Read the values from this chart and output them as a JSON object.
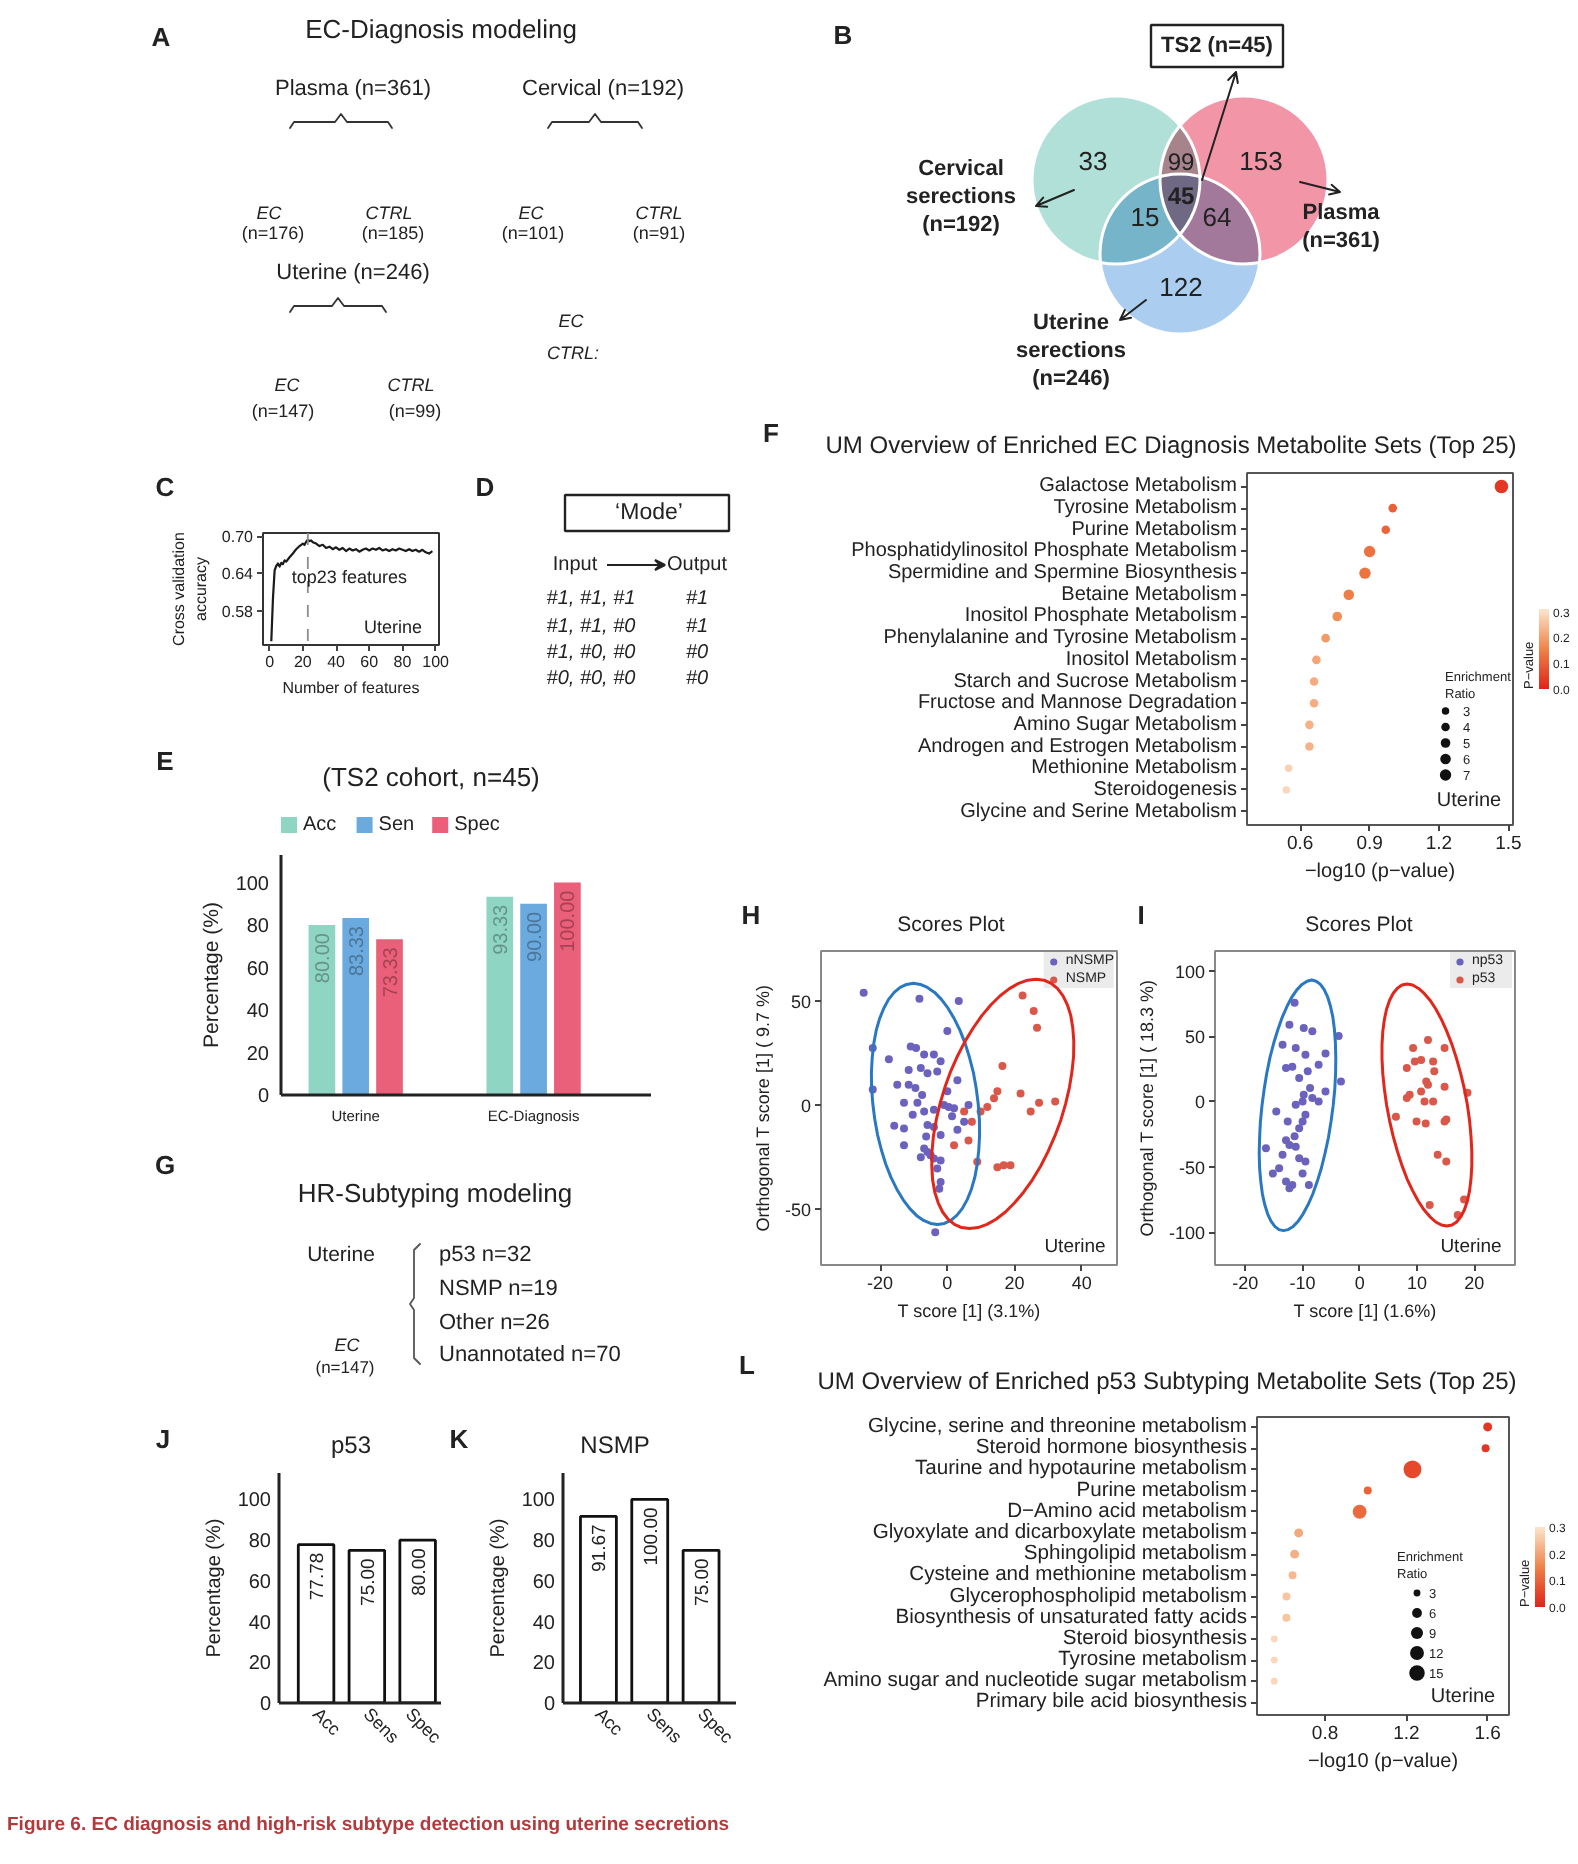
{
  "chart_data": [
    {
      "type": "other",
      "title": "EC-Diagnosis modeling",
      "annotations": [
        "A",
        "Plasma (n=361)",
        "Cervical (n=192)",
        "Uterine (n=246)",
        "EC",
        "(n=176)",
        "CTRL",
        "(n=185)",
        "EC",
        "(n=101)",
        "CTRL",
        "(n=91)",
        "EC",
        "(n=147)",
        "CTRL",
        "(n=99)",
        "EC",
        "CTRL:"
      ]
    },
    {
      "type": "other",
      "annotations": [
        "B",
        "TS2 (n=45)",
        "33",
        "99",
        "153",
        "15",
        "45",
        "64",
        "122",
        "Cervical serections (n=192)",
        "Plasma (n=361)",
        "Uterine serections (n=246)"
      ]
    },
    {
      "type": "line",
      "annotations": [
        "C",
        "Uterine"
      ],
      "xlabel": "Number of features",
      "ylabel": "Cross validation\naccuracy",
      "xlim": [
        -4,
        102
      ],
      "xticks": [
        0,
        20,
        40,
        60,
        80,
        100
      ],
      "ylim": [
        0.525,
        0.705
      ],
      "yticks": [
        0.58,
        0.64,
        {
          "value": 0.7,
          "label": "0.70"
        }
      ],
      "ref_lines": [
        {
          "axis": "x",
          "value": 23,
          "label": "top23 features",
          "line_style": "dashed",
          "color": "#8c8c8c"
        }
      ],
      "series": [
        {
          "color": "#1a1a1a",
          "x": [
            1,
            2,
            3,
            4,
            5,
            6,
            7,
            8,
            9,
            10,
            12,
            14,
            16,
            18,
            20,
            21,
            22,
            23,
            24,
            25,
            26,
            28,
            30,
            32,
            34,
            36,
            38,
            40,
            42,
            44,
            46,
            48,
            50,
            52,
            54,
            56,
            58,
            60,
            62,
            64,
            66,
            68,
            70,
            72,
            74,
            76,
            78,
            80,
            82,
            84,
            86,
            88,
            90,
            92,
            94,
            96,
            98
          ],
          "values": [
            0.531,
            0.6,
            0.645,
            0.652,
            0.656,
            0.651,
            0.657,
            0.655,
            0.661,
            0.659,
            0.666,
            0.672,
            0.679,
            0.684,
            0.688,
            0.686,
            0.691,
            0.694,
            0.692,
            0.693,
            0.69,
            0.688,
            0.684,
            0.686,
            0.681,
            0.683,
            0.679,
            0.682,
            0.678,
            0.681,
            0.676,
            0.68,
            0.677,
            0.679,
            0.675,
            0.678,
            0.68,
            0.677,
            0.68,
            0.678,
            0.681,
            0.677,
            0.679,
            0.676,
            0.679,
            0.677,
            0.68,
            0.678,
            0.676,
            0.679,
            0.676,
            0.678,
            0.675,
            0.678,
            0.674,
            0.672,
            0.676
          ]
        }
      ]
    },
    {
      "type": "other",
      "annotations": [
        "D",
        "‘Mode’",
        "Input",
        "Output",
        "#1, #1, #1",
        "#1",
        "#1, #1, #0",
        "#1",
        "#1, #0, #0",
        "#0",
        "#0, #0, #0",
        "#0"
      ]
    },
    {
      "type": "bar",
      "title": "(TS2 cohort, n=45)",
      "annotations": [
        "E"
      ],
      "categories": [
        "Uterine",
        "EC-Diagnosis"
      ],
      "ylabel": "Percentage (%)",
      "ylim": [
        0,
        113
      ],
      "yticks": [
        0,
        20,
        40,
        60,
        80,
        100
      ],
      "legend": "top",
      "series": [
        {
          "name": "Acc",
          "color": "#8fd5c3",
          "values": [
            80.0,
            93.33
          ],
          "value_labels": [
            "80.00",
            "93.33"
          ]
        },
        {
          "name": "Sen",
          "color": "#6aaade",
          "values": [
            83.33,
            90.0
          ],
          "value_labels": [
            "83.33",
            "90.00"
          ]
        },
        {
          "name": "Spec",
          "color": "#ea5f79",
          "values": [
            73.33,
            100.0
          ],
          "value_labels": [
            "73.33",
            "100.00"
          ]
        }
      ]
    },
    {
      "type": "bubble",
      "title": "UM Overview of Enriched EC Diagnosis Metabolite Sets (Top 25)",
      "annotations": [
        "F",
        "Uterine"
      ],
      "orientation": "horizontal",
      "categories": [
        "Galactose Metabolism",
        "Tyrosine Metabolism",
        "Purine Metabolism",
        "Phosphatidylinositol Phosphate Metabolism",
        "Spermidine and Spermine Biosynthesis",
        "Betaine Metabolism",
        "Inositol Phosphate Metabolism",
        "Phenylalanine and Tyrosine Metabolism",
        "Inositol Metabolism",
        "Starch and Sucrose Metabolism",
        "Fructose and Mannose Degradation",
        "Amino Sugar Metabolism",
        "Androgen and Estrogen Metabolism",
        "Methionine Metabolism",
        "Steroidogenesis",
        "Glycine and Serine Metabolism"
      ],
      "values": [
        1.47,
        1.0,
        0.97,
        0.9,
        0.88,
        0.81,
        0.76,
        0.71,
        0.67,
        0.66,
        0.66,
        0.64,
        0.64,
        0.55,
        0.54,
        null
      ],
      "sizes": [
        10,
        4,
        4,
        7,
        7,
        6,
        5,
        4,
        4,
        4,
        4,
        4,
        4,
        3,
        3,
        null
      ],
      "cvalues": [
        0.03,
        0.1,
        0.11,
        0.13,
        0.13,
        0.15,
        0.17,
        0.19,
        0.21,
        0.22,
        0.22,
        0.23,
        0.23,
        0.28,
        0.29,
        null
      ],
      "xlim": [
        0.37,
        1.52
      ],
      "xticks": [
        0.6,
        0.9,
        1.2,
        1.5
      ],
      "xlabel": "−log10 (p−value)",
      "clabel": "P−value",
      "clim": [
        0,
        0.31
      ],
      "cticks": [
        {
          "value": 0,
          "label": "0.0"
        },
        0.1,
        0.2,
        0.3
      ],
      "size_legend": [
        3,
        4,
        5,
        6,
        7
      ],
      "legend_title": "Enrichment\nRatio"
    },
    {
      "type": "other",
      "title": "HR-Subtyping modeling",
      "annotations": [
        "G",
        "Uterine",
        "EC",
        "(n=147)",
        "p53 n=32",
        "NSMP n=19",
        "Other n=26",
        "Unannotated n=70"
      ]
    },
    {
      "type": "scatter",
      "title": "Scores Plot",
      "annotations": [
        "H",
        "Uterine"
      ],
      "xlabel": "T score [1] (3.1%)",
      "ylabel": "Orthogonal T score [1] ( 9.7 %)",
      "xlim": [
        -37.6,
        50.5
      ],
      "xticks": [
        -20,
        0,
        20,
        40
      ],
      "ylim": [
        -77,
        74
      ],
      "yticks": [
        -50,
        0,
        50
      ],
      "legend": "top right",
      "marker": "circle",
      "series": [
        {
          "name": "nNSMP",
          "color": "#6b62bd",
          "x": [
            -24.9,
            -8.3,
            3.4,
            0.0,
            -22.2,
            -10.9,
            -9.3,
            -17.4,
            -6.9,
            -4.0,
            -2.0,
            -11.5,
            -7.9,
            -5.9,
            -3.0,
            3.0,
            -14.9,
            -11.5,
            -9.5,
            -7.5,
            -22.2,
            -12.9,
            -8.9,
            -1.0,
            0.4,
            2.0,
            6.3,
            -4.0,
            -6.9,
            -10.3,
            -15.8,
            -12.9,
            -5.9,
            -4.0,
            -2.0,
            3.0,
            -6.3,
            -12.9,
            -6.9,
            -5.9,
            -5.0,
            -7.9,
            -4.0,
            -2.0,
            -3.0,
            -2.0,
            -2.4,
            -3.6,
            0.0,
            1.4,
            5.0
          ],
          "values": [
            53.9,
            51.0,
            50.0,
            35.5,
            27.4,
            28.1,
            27.4,
            21.9,
            24.2,
            24.2,
            21.0,
            16.8,
            17.7,
            15.2,
            16.1,
            11.9,
            9.7,
            9.7,
            8.1,
            4.8,
            7.4,
            1.0,
            1.0,
            0.0,
            -1.0,
            -1.6,
            0.0,
            -2.3,
            -3.2,
            -4.8,
            -10.0,
            -11.3,
            -9.7,
            -10.6,
            -14.5,
            -11.9,
            -15.2,
            -19.4,
            -21.0,
            -22.6,
            -24.2,
            -25.2,
            -25.8,
            -26.8,
            -30.6,
            -37.1,
            -40.3,
            -61.3,
            6.5,
            -5.5,
            -8.1
          ]
        },
        {
          "name": "NSMP",
          "color": "#d9584a",
          "x": [
            22.4,
            25.7,
            26.7,
            16.4,
            14.9,
            13.9,
            11.9,
            9.9,
            21.8,
            24.8,
            27.3,
            32.1,
            7.3,
            6.3,
            2.0,
            8.9,
            14.9,
            16.8,
            18.8,
            5.0
          ],
          "values": [
            52.6,
            45.2,
            37.1,
            18.7,
            6.5,
            3.2,
            -1.0,
            -3.2,
            5.5,
            -3.2,
            1.0,
            1.6,
            -8.1,
            -17.1,
            -19.4,
            -27.4,
            -30.0,
            -29.0,
            -29.0,
            -3.2
          ]
        }
      ]
    },
    {
      "type": "scatter",
      "title": "Scores Plot",
      "annotations": [
        "I",
        "Uterine"
      ],
      "xlabel": "T score [1] (1.6%)",
      "ylabel": "Orthogonal T score [1] ( 18.3 %)",
      "xlim": [
        -25.3,
        27.1
      ],
      "xticks": [
        -20,
        -10,
        0,
        10,
        20
      ],
      "ylim": [
        -125,
        115
      ],
      "yticks": [
        -100,
        -50,
        0,
        50,
        100
      ],
      "legend": "top right",
      "marker": "circle",
      "series": [
        {
          "name": "np53",
          "color": "#6b62bd",
          "x": [
            -11.4,
            -12.3,
            -9.8,
            -13.5,
            -8.3,
            -11.2,
            -9.5,
            -6.0,
            -3.7,
            -3.3,
            -7.2,
            -11.8,
            -9.1,
            -10.6,
            -12.9,
            -8.7,
            -6.0,
            -9.8,
            -10.0,
            -8.3,
            -7.2,
            -11.2,
            -9.5,
            -10.0,
            -14.6,
            -12.6,
            -10.6,
            -11.4,
            -12.9,
            -12.3,
            -11.2,
            -16.4,
            -10.6,
            -13.5,
            -14.1,
            -15.2,
            -12.9,
            -11.8,
            -12.3,
            -8.9,
            -9.5,
            -10.0
          ],
          "values": [
            75.5,
            58.7,
            56.1,
            43.4,
            53.6,
            40.8,
            35.7,
            36.7,
            50.0,
            15.3,
            28.1,
            26.5,
            23.0,
            17.9,
            25.5,
            10.2,
            7.7,
            5.1,
            0.0,
            2.6,
            0.0,
            -2.6,
            -10.2,
            -15.3,
            -7.7,
            -15.3,
            -20.4,
            -26.5,
            -29.6,
            -33.2,
            -34.7,
            -35.7,
            -43.4,
            -40.8,
            -51.0,
            -55.1,
            -61.2,
            -63.8,
            -66.3,
            -63.8,
            -45.9,
            -55.1
          ]
        },
        {
          "name": "p53",
          "color": "#d9584a",
          "x": [
            9.3,
            11.9,
            14.8,
            9.6,
            10.7,
            12.8,
            8.2,
            11.6,
            11.9,
            13.0,
            8.7,
            10.7,
            12.8,
            14.8,
            18.8,
            8.2,
            6.3,
            9.9,
            11.5,
            15.1,
            14.8,
            13.6,
            15.1,
            18.2,
            12.2,
            17.1,
            11.3
          ],
          "values": [
            40.8,
            46.9,
            40.8,
            30.6,
            31.6,
            30.6,
            25.5,
            15.3,
            12.8,
            23.0,
            5.1,
            7.7,
            0.0,
            11.2,
            6.6,
            2.6,
            -11.7,
            -15.3,
            -16.8,
            -13.8,
            -15.3,
            -40.8,
            -45.9,
            -75.0,
            -79.1,
            -86.7,
            0.0
          ]
        }
      ]
    },
    {
      "type": "bar",
      "title": "p53",
      "annotations": [
        "J"
      ],
      "categories": [
        "Acc",
        "Sens",
        "Spec"
      ],
      "values": [
        77.78,
        75.0,
        80.0
      ],
      "value_labels": [
        "77.78",
        "75.00",
        "80.00"
      ],
      "color": "#ffffff",
      "ylabel": "Percentage (%)",
      "ylim": [
        0,
        113
      ],
      "yticks": [
        0,
        20,
        40,
        60,
        80,
        100
      ]
    },
    {
      "type": "bar",
      "title": "NSMP",
      "annotations": [
        "K"
      ],
      "categories": [
        "Acc",
        "Sens",
        "Spec"
      ],
      "values": [
        91.67,
        100.0,
        75.0
      ],
      "value_labels": [
        "91.67",
        "100.00",
        "75.00"
      ],
      "color": "#ffffff",
      "ylabel": "Percentage (%)",
      "ylim": [
        0,
        113
      ],
      "yticks": [
        0,
        20,
        40,
        60,
        80,
        100
      ]
    },
    {
      "type": "bubble",
      "title": "UM Overview of Enriched p53 Subtyping Metabolite Sets (Top 25)",
      "annotations": [
        "L",
        "Uterine"
      ],
      "orientation": "horizontal",
      "categories": [
        "Glycine, serine and threonine metabolism",
        "Steroid hormone biosynthesis",
        "Taurine and hypotaurine metabolism",
        "Purine metabolism",
        "D−Amino acid metabolism",
        "Glyoxylate and dicarboxylate metabolism",
        "Sphingolipid metabolism",
        "Cysteine and methionine metabolism",
        "Glycerophospholipid metabolism",
        "Biosynthesis of unsaturated fatty acids",
        "Steroid biosynthesis",
        "Tyrosine metabolism",
        "Amino sugar and nucleotide sugar metabolism",
        "Primary bile acid biosynthesis"
      ],
      "values": [
        1.6,
        1.59,
        1.23,
        1.01,
        0.97,
        0.67,
        0.65,
        0.64,
        0.61,
        0.61,
        0.55,
        0.55,
        0.55,
        null
      ],
      "sizes": [
        5,
        4,
        20,
        4,
        12,
        5,
        5,
        4,
        4,
        4,
        3,
        3,
        3,
        null
      ],
      "cvalues": [
        0.03,
        0.03,
        0.06,
        0.1,
        0.11,
        0.21,
        0.22,
        0.23,
        0.25,
        0.25,
        0.28,
        0.28,
        0.28,
        null
      ],
      "xlim": [
        0.465,
        1.705
      ],
      "xticks": [
        0.8,
        1.2,
        1.6
      ],
      "xlabel": "−log10 (p−value)",
      "clabel": "P−value",
      "clim": [
        0,
        0.3
      ],
      "cticks": [
        {
          "value": 0,
          "label": "0.0"
        },
        0.1,
        0.2,
        0.3
      ],
      "size_legend": [
        3,
        6,
        9,
        12,
        15
      ],
      "legend_title": "Enrichment\nRatio"
    },
    {
      "type": "other",
      "title": "Figure 6. EC diagnosis and high-risk subtype detection using uterine secretions"
    }
  ]
}
